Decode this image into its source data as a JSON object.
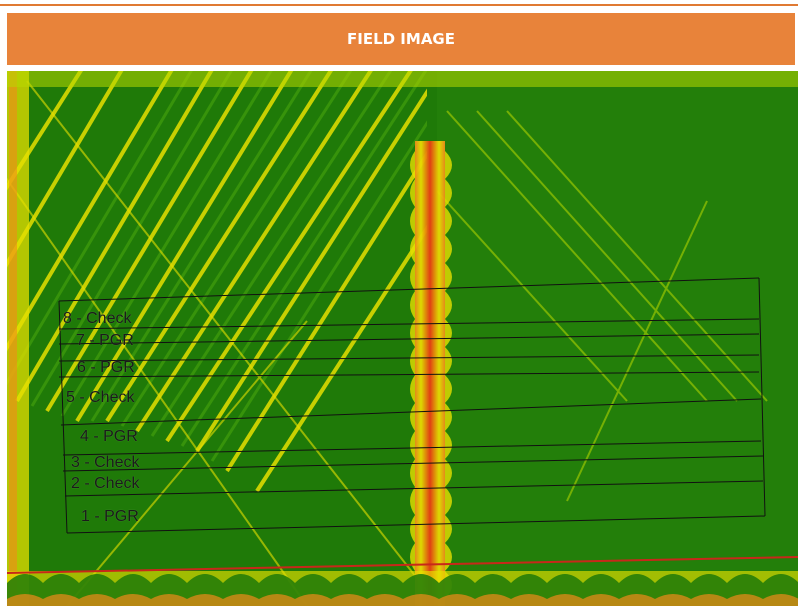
{
  "header": {
    "title": "FIELD IMAGE"
  },
  "colors": {
    "header_bg": "#e8833a",
    "crop_dark": "#1f7a08",
    "crop_mid": "#3d9a0c",
    "stress_yellow": "#e6e000",
    "stress_orange": "#f08a1a",
    "stress_red": "#e43a14",
    "plot_lines": "#111111",
    "boundary_line": "#c8281a"
  },
  "map": {
    "plots": [
      {
        "label": "8 - Check"
      },
      {
        "label": "7 - PGR"
      },
      {
        "label": "6 - PGR"
      },
      {
        "label": "5 - Check"
      },
      {
        "label": "4 - PGR"
      },
      {
        "label": "3 - Check"
      },
      {
        "label": "2 - Check"
      },
      {
        "label": "1 - PGR"
      }
    ]
  }
}
